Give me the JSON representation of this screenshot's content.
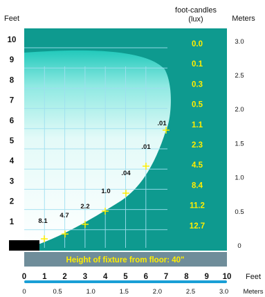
{
  "header": {
    "left_unit": "Feet",
    "fc_title_line1": "foot-candles",
    "fc_title_line2": "(lux)",
    "right_unit": "Meters"
  },
  "left_feet_ticks": [
    "1",
    "2",
    "3",
    "4",
    "5",
    "6",
    "7",
    "8",
    "9",
    "10"
  ],
  "right_meter_ticks": [
    "0",
    "0.5",
    "1.0",
    "1.5",
    "2.0",
    "2.5",
    "3.0"
  ],
  "fc_values": [
    "12.7",
    "11.2",
    "8.4",
    "4.5",
    "2.3",
    "1.1",
    "0.5",
    "0.3",
    "0.1",
    "0.0"
  ],
  "point_labels": [
    "8.1",
    "4.7",
    "2.2",
    "1.0",
    ".04",
    ".01",
    ".01"
  ],
  "fixture_banner": "Height of fixture from floor: 40\"",
  "bottom_feet_ticks": [
    "0",
    "1",
    "2",
    "3",
    "4",
    "5",
    "6",
    "7",
    "8",
    "9",
    "10"
  ],
  "bottom_feet_unit": "Feet",
  "bottom_meter_ticks": [
    "0",
    "0.5",
    "1.0",
    "1.5",
    "2.0",
    "2.5",
    "3.0"
  ],
  "bottom_meter_unit": "Meters",
  "colors": {
    "teal": "#0e9a8f",
    "banner": "#6f8d9a",
    "yellow": "#ffee00",
    "scale_blue": "#1a9fd6"
  }
}
